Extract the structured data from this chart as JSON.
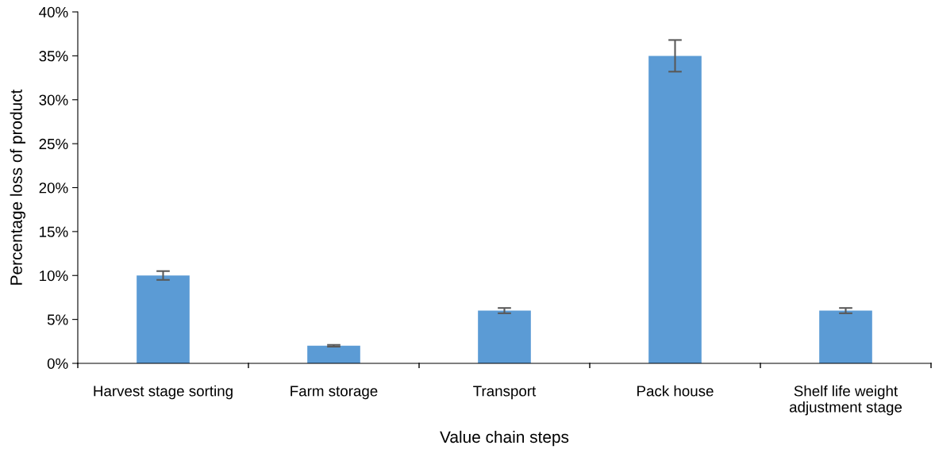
{
  "chart_data": {
    "type": "bar",
    "xlabel": "Value chain steps",
    "ylabel": "Percentage loss of product",
    "categories": [
      "Harvest stage sorting",
      "Farm storage",
      "Transport",
      "Pack house",
      "Shelf life weight\nadjustment stage"
    ],
    "values": [
      10,
      2,
      6,
      35,
      6
    ],
    "errors": [
      0.5,
      0.1,
      0.3,
      1.8,
      0.3
    ],
    "color": "#5b9bd5",
    "ylim": [
      0,
      40
    ],
    "yticks": [
      {
        "value": 0,
        "label": "0%"
      },
      {
        "value": 5,
        "label": "5%"
      },
      {
        "value": 10,
        "label": "10%"
      },
      {
        "value": 15,
        "label": "15%"
      },
      {
        "value": 20,
        "label": "20%"
      },
      {
        "value": 25,
        "label": "25%"
      },
      {
        "value": 30,
        "label": "30%"
      },
      {
        "value": 35,
        "label": "35%"
      },
      {
        "value": 40,
        "label": "40%"
      }
    ],
    "grid": false
  }
}
